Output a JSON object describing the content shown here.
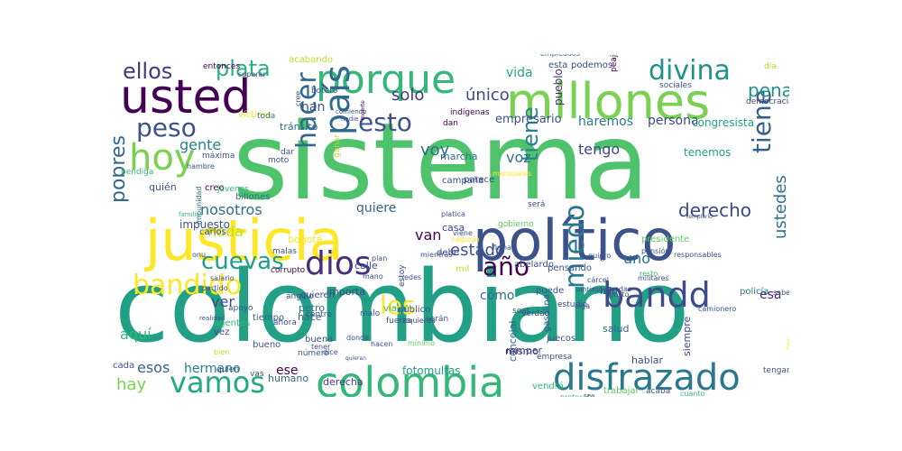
{
  "words": [
    {
      "text": "sistema",
      "color": "#4ec36b"
    },
    {
      "text": "colombiano",
      "color": "#22a085"
    },
    {
      "text": "justicia",
      "color": "#fde725"
    },
    {
      "text": "político",
      "color": "#3b528b"
    },
    {
      "text": "millones",
      "color": "#7ad151"
    },
    {
      "text": "usted",
      "color": "#440154"
    },
    {
      "text": "porque",
      "color": "#35b779"
    },
    {
      "text": "colombia",
      "color": "#35b779"
    },
    {
      "text": "disfrazado",
      "color": "#2a788e"
    },
    {
      "text": "país",
      "color": "#31688e"
    },
    {
      "text": "hoy",
      "color": "#7ad151"
    },
    {
      "text": "bandd",
      "color": "#3e4a89"
    },
    {
      "text": "bandido",
      "color": "#fde725"
    },
    {
      "text": "vamos",
      "color": "#22a884"
    },
    {
      "text": "dios",
      "color": "#472d7b"
    },
    {
      "text": "peso",
      "color": "#3b528b"
    },
    {
      "text": "hacer",
      "color": "#31688e"
    },
    {
      "text": "miedo",
      "color": "#2a788e"
    },
    {
      "text": "tiene",
      "color": "#355f8d"
    },
    {
      "text": "divina",
      "color": "#21918c"
    },
    {
      "text": "ellos",
      "color": "#443983"
    },
    {
      "text": "plata",
      "color": "#2ab07f"
    },
    {
      "text": "esto",
      "color": "#3b528b"
    },
    {
      "text": "cuevas",
      "color": "#1f9e89"
    },
    {
      "text": "año",
      "color": "#440154"
    },
    {
      "text": "les",
      "color": "#fde725"
    },
    {
      "text": "tiene",
      "color": "#26828e"
    },
    {
      "text": "derecho",
      "color": "#3e4989"
    },
    {
      "text": "pena",
      "color": "#20928c"
    },
    {
      "text": "pobres",
      "color": "#31688e"
    },
    {
      "text": "estado",
      "color": "#3b528b"
    },
    {
      "text": "ustedes",
      "color": "#2c728e"
    },
    {
      "text": "hay",
      "color": "#7ad151"
    },
    {
      "text": "esos",
      "color": "#33638d"
    },
    {
      "text": "aquí",
      "color": "#35b779"
    },
    {
      "text": "nada",
      "color": "#bddf26"
    },
    {
      "text": "nosotros",
      "color": "#2e6e8e"
    },
    {
      "text": "gente",
      "color": "#277f8e"
    },
    {
      "text": "voy",
      "color": "#2d708e"
    },
    {
      "text": "solo",
      "color": "#453781"
    },
    {
      "text": "único",
      "color": "#3e4989"
    },
    {
      "text": "van",
      "color": "#440154"
    },
    {
      "text": "uno",
      "color": "#2d708e"
    },
    {
      "text": "ver",
      "color": "#3e4989"
    },
    {
      "text": "hermano",
      "color": "#26828e"
    },
    {
      "text": "tengo",
      "color": "#3e4989"
    },
    {
      "text": "voz",
      "color": "#2c728e"
    },
    {
      "text": "quiere",
      "color": "#33638d"
    },
    {
      "text": "esa",
      "color": "#482878"
    },
    {
      "text": "vida",
      "color": "#20a386"
    },
    {
      "text": "haremos",
      "color": "#2a788e"
    },
    {
      "text": "persona",
      "color": "#3e4989"
    },
    {
      "text": "empresario",
      "color": "#3b528b"
    },
    {
      "text": "congresista",
      "color": "#1fa187"
    },
    {
      "text": "han",
      "color": "#3b528b"
    },
    {
      "text": "cómo",
      "color": "#2e6e8e"
    },
    {
      "text": "ese",
      "color": "#440154"
    },
    {
      "text": "fotomultas",
      "color": "#1f9e89"
    },
    {
      "text": "impuesto",
      "color": "#3b528b"
    },
    {
      "text": "tránsito",
      "color": "#2d708e"
    },
    {
      "text": "tenemos",
      "color": "#20a386"
    },
    {
      "text": "pueblo",
      "color": "#482878"
    },
    {
      "text": "esta",
      "color": "#3e4989"
    },
    {
      "text": "podemos",
      "color": "#3e4989"
    },
    {
      "text": "quién",
      "color": "#3b528b"
    },
    {
      "text": "derecha",
      "color": "#453781"
    },
    {
      "text": "salud",
      "color": "#33638d"
    },
    {
      "text": "conductores",
      "color": "#1fa187"
    },
    {
      "text": "humano",
      "color": "#31688e"
    },
    {
      "text": "hablar",
      "color": "#3b528b"
    },
    {
      "text": "sarmiento",
      "color": "#2d708e"
    },
    {
      "text": "siempre",
      "color": "#3e4989"
    },
    {
      "text": "concejal",
      "color": "#31688e"
    },
    {
      "text": "mismo",
      "color": "#482878"
    },
    {
      "text": "casa",
      "color": "#3e4989"
    },
    {
      "text": "calle",
      "color": "#3b528b"
    },
    {
      "text": "marcha",
      "color": "#2d708e"
    },
    {
      "text": "parece",
      "color": "#3e4989"
    },
    {
      "text": "debe",
      "color": "#3e4989"
    },
    {
      "text": "bueno",
      "color": "#3b528b"
    },
    {
      "text": "buena",
      "color": "#3b528b"
    },
    {
      "text": "hace",
      "color": "#31688e"
    },
    {
      "text": "petro",
      "color": "#2d708e"
    },
    {
      "text": "hijo",
      "color": "#3e4989"
    },
    {
      "text": "verdad",
      "color": "#3b528b"
    },
    {
      "text": "mil",
      "color": "#bddf26"
    },
    {
      "text": "campaña",
      "color": "#3e4989"
    },
    {
      "text": "importa",
      "color": "#3e4989"
    },
    {
      "text": "quieren",
      "color": "#3e4989"
    },
    {
      "text": "bogotá",
      "color": "#fde725"
    },
    {
      "text": "presidente",
      "color": "#5ec962"
    },
    {
      "text": "policía",
      "color": "#2a788e"
    },
    {
      "text": "tiempo",
      "color": "#33638d"
    },
    {
      "text": "cada",
      "color": "#3b528b"
    },
    {
      "text": "vez",
      "color": "#3e4989"
    },
    {
      "text": "malas",
      "color": "#3b528b"
    },
    {
      "text": "negocio",
      "color": "#fde725"
    },
    {
      "text": "mensuales",
      "color": "#fde725"
    },
    {
      "text": "billones",
      "color": "#2d708e"
    },
    {
      "text": "creo",
      "color": "#440154"
    },
    {
      "text": "acabando",
      "color": "#bddf26"
    },
    {
      "text": "entonces",
      "color": "#440154"
    },
    {
      "text": "superar",
      "color": "#3b528b"
    },
    {
      "text": "víctima",
      "color": "#fde725"
    },
    {
      "text": "moto",
      "color": "#3e4989"
    },
    {
      "text": "dar",
      "color": "#3b528b"
    },
    {
      "text": "toda",
      "color": "#2a788e"
    },
    {
      "text": "dan",
      "color": "#440154"
    },
    {
      "text": "indígenas",
      "color": "#440154"
    },
    {
      "text": "cree",
      "color": "#3b528b"
    },
    {
      "text": "botero",
      "color": "#3b528b"
    },
    {
      "text": "comiendo",
      "color": "#3b528b"
    },
    {
      "text": "nadie",
      "color": "#3b528b"
    },
    {
      "text": "muerte",
      "color": "#440154"
    },
    {
      "text": "empleados",
      "color": "#2d708e"
    },
    {
      "text": "día",
      "color": "#bddf26"
    },
    {
      "text": "peajes",
      "color": "#440154"
    },
    {
      "text": "sociales",
      "color": "#3b528b"
    },
    {
      "text": "democracia",
      "color": "#3e4989"
    },
    {
      "text": "super",
      "color": "#3e4989"
    },
    {
      "text": "ganar",
      "color": "#bddf26"
    },
    {
      "text": "máxima",
      "color": "#3b528b"
    },
    {
      "text": "hambre",
      "color": "#3b528b"
    },
    {
      "text": "bendiga",
      "color": "#35b779"
    },
    {
      "text": "jóvenes",
      "color": "#35b779"
    },
    {
      "text": "familia",
      "color": "#35b779"
    },
    {
      "text": "impunidad",
      "color": "#2d708e"
    },
    {
      "text": "carlos",
      "color": "#3b528b"
    },
    {
      "text": "corrupto",
      "color": "#440154"
    },
    {
      "text": "onu",
      "color": "#3b528b"
    },
    {
      "text": "salario",
      "color": "#3b528b"
    },
    {
      "text": "partido",
      "color": "#3b528b"
    },
    {
      "text": "apoyo",
      "color": "#3b528b"
    },
    {
      "text": "ángulo",
      "color": "#3b528b"
    },
    {
      "text": "agentes",
      "color": "#35b779"
    },
    {
      "text": "realidad",
      "color": "#3b528b"
    },
    {
      "text": "bien",
      "color": "#bddf26"
    },
    {
      "text": "quien",
      "color": "#3b528b"
    },
    {
      "text": "vas",
      "color": "#3b528b"
    },
    {
      "text": "número",
      "color": "#3b528b"
    },
    {
      "text": "dice",
      "color": "#3b528b"
    },
    {
      "text": "centro",
      "color": "#3b528b"
    },
    {
      "text": "malo",
      "color": "#3b528b"
    },
    {
      "text": "fuerza",
      "color": "#3b528b"
    },
    {
      "text": "izquierda",
      "color": "#3e4989"
    },
    {
      "text": "mínimo",
      "color": "#5ec962"
    },
    {
      "text": "donde",
      "color": "#3b528b"
    },
    {
      "text": "quieran",
      "color": "#3b528b"
    },
    {
      "text": "hacen",
      "color": "#3b528b"
    },
    {
      "text": "serán",
      "color": "#3b528b"
    },
    {
      "text": "público",
      "color": "#3b528b"
    },
    {
      "text": "ahora",
      "color": "#3b528b"
    },
    {
      "text": "tener",
      "color": "#3b528b"
    },
    {
      "text": "estoy",
      "color": "#3b528b"
    },
    {
      "text": "vía",
      "color": "#35b779"
    },
    {
      "text": "mano",
      "color": "#3b528b"
    },
    {
      "text": "redes",
      "color": "#3b528b"
    },
    {
      "text": "mientras",
      "color": "#3b528b"
    },
    {
      "text": "plan",
      "color": "#3b528b"
    },
    {
      "text": "platica",
      "color": "#3b528b"
    },
    {
      "text": "viene",
      "color": "#3b528b"
    },
    {
      "text": "gobierno",
      "color": "#5ec962"
    },
    {
      "text": "será",
      "color": "#3b528b"
    },
    {
      "text": "firma",
      "color": "#3b528b"
    },
    {
      "text": "abelardo",
      "color": "#3b528b"
    },
    {
      "text": "pensando",
      "color": "#3b528b"
    },
    {
      "text": "puede",
      "color": "#3b528b"
    },
    {
      "text": "soat",
      "color": "#3b528b"
    },
    {
      "text": "santiago",
      "color": "#3b528b"
    },
    {
      "text": "estudio",
      "color": "#3b528b"
    },
    {
      "text": "oiga",
      "color": "#3b528b"
    },
    {
      "text": "cárcel",
      "color": "#3b528b"
    },
    {
      "text": "bandas",
      "color": "#3b528b"
    },
    {
      "text": "gusto",
      "color": "#3b528b"
    },
    {
      "text": "pensión",
      "color": "#3b528b"
    },
    {
      "text": "responsables",
      "color": "#3b528b"
    },
    {
      "text": "doy",
      "color": "#3b528b"
    },
    {
      "text": "quiero",
      "color": "#3b528b"
    },
    {
      "text": "resto",
      "color": "#35b779"
    },
    {
      "text": "militares",
      "color": "#3b528b"
    },
    {
      "text": "templario",
      "color": "#3b528b"
    },
    {
      "text": "camionero",
      "color": "#3b528b"
    },
    {
      "text": "sabe",
      "color": "#3b528b"
    },
    {
      "text": "per",
      "color": "#fde725"
    },
    {
      "text": "tengan",
      "color": "#3b528b"
    },
    {
      "text": "gasolina",
      "color": "#3b528b"
    },
    {
      "text": "empresa",
      "color": "#3b528b"
    },
    {
      "text": "juecos",
      "color": "#3b528b"
    },
    {
      "text": "romper",
      "color": "#3b528b"
    },
    {
      "text": "vendrá",
      "color": "#35b779"
    },
    {
      "text": "protocolo",
      "color": "#35b779"
    },
    {
      "text": "sea",
      "color": "#3b528b"
    },
    {
      "text": "trabajar",
      "color": "#5ec962"
    },
    {
      "text": "acaba",
      "color": "#3b528b"
    },
    {
      "text": "cuanto",
      "color": "#35b779"
    }
  ]
}
